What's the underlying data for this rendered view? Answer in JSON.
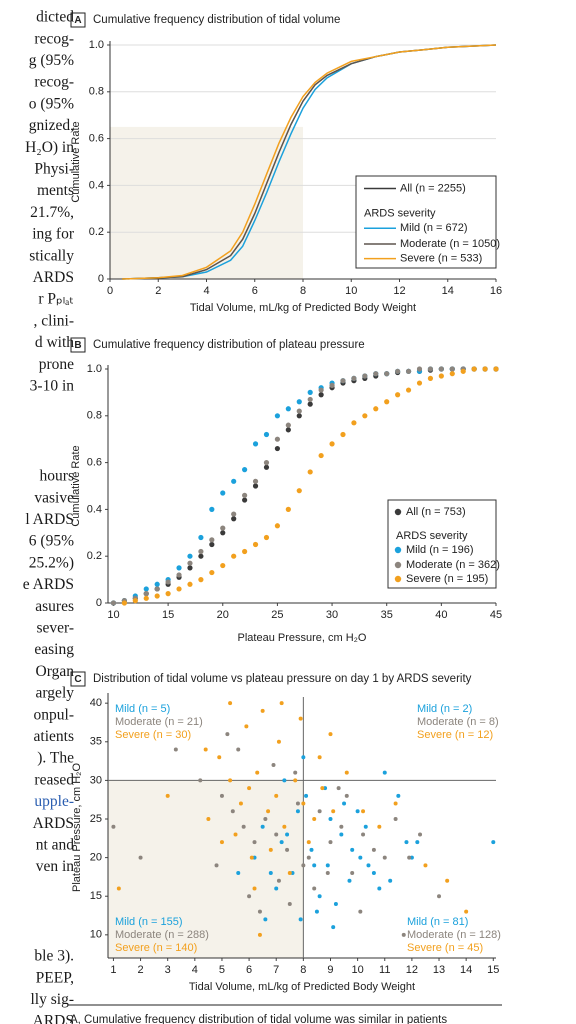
{
  "body_text": [
    [
      "dicted",
      "recog-",
      "g (95%",
      "recog-",
      "o (95%",
      "gnized,",
      "H₂O) in",
      "Physi-",
      "ments",
      "21.7%,",
      "ing for",
      "stically",
      "ARDS",
      "r Pₚₗₐₜ",
      ", clini-",
      "d with",
      "prone",
      "3-10 in"
    ],
    [
      "hours",
      "vasive",
      "l ARDS",
      "6 (95%",
      "25.2%)",
      "e ARDS",
      "asures",
      "sever-",
      "easing",
      "Organ",
      "argely",
      "onpul-",
      "atients",
      "). The",
      "reased",
      "upple-",
      "ARDS",
      "nt and",
      "ven in"
    ],
    [
      "ble 3).",
      "PEEP,",
      "lly sig-",
      "ARDS"
    ]
  ],
  "caption": "A, Cumulative frequency distribution of tidal volume was similar in patients",
  "chart_data": [
    {
      "panel": "A",
      "type": "line",
      "title": "Cumulative frequency distribution of tidal volume",
      "x_label": "Tidal Volume, mL/kg of Predicted Body Weight",
      "y_label": "Cumulative Rate",
      "xlim": [
        0,
        16
      ],
      "ylim": [
        0,
        1
      ],
      "xticks": [
        0,
        2,
        4,
        6,
        8,
        10,
        12,
        14,
        16
      ],
      "yticks": [
        0,
        0.2,
        0.4,
        0.6,
        0.8,
        {
          "value": 1,
          "label": "1.0"
        }
      ],
      "grid": true,
      "highlight": {
        "x": [
          0,
          8
        ],
        "y": [
          0,
          0.65
        ]
      },
      "legend_title": "ARDS severity",
      "x": [
        0.5,
        2,
        3,
        4,
        5,
        5.5,
        6,
        6.5,
        7,
        7.5,
        8,
        8.5,
        9,
        10,
        11,
        12,
        13,
        14,
        16
      ],
      "series": [
        {
          "name": "All (n = 2255)",
          "color": "#3a3a3a",
          "values": [
            0,
            0.005,
            0.01,
            0.04,
            0.1,
            0.17,
            0.28,
            0.41,
            0.54,
            0.66,
            0.76,
            0.83,
            0.87,
            0.92,
            0.95,
            0.97,
            0.98,
            0.99,
            1
          ]
        },
        {
          "name": "Mild (n = 672)",
          "color": "#1ba1dc",
          "values": [
            0,
            0.005,
            0.01,
            0.03,
            0.08,
            0.14,
            0.25,
            0.37,
            0.5,
            0.62,
            0.73,
            0.81,
            0.86,
            0.92,
            0.95,
            0.97,
            0.98,
            0.99,
            1
          ]
        },
        {
          "name": "Moderate (n = 1050)",
          "color": "#5e554e",
          "values": [
            0,
            0.005,
            0.01,
            0.04,
            0.1,
            0.17,
            0.28,
            0.41,
            0.54,
            0.66,
            0.76,
            0.83,
            0.87,
            0.92,
            0.95,
            0.97,
            0.98,
            0.99,
            1
          ]
        },
        {
          "name": "Severe (n = 533)",
          "color": "#f2a01e",
          "values": [
            0,
            0.005,
            0.015,
            0.05,
            0.12,
            0.2,
            0.32,
            0.45,
            0.58,
            0.69,
            0.78,
            0.84,
            0.88,
            0.93,
            0.95,
            0.97,
            0.98,
            0.99,
            1
          ]
        }
      ]
    },
    {
      "panel": "B",
      "type": "scatter",
      "title": "Cumulative frequency distribution of plateau pressure",
      "x_label": "Plateau Pressure, cm H₂O",
      "y_label": "Cumulative Rate",
      "xlim": [
        9.5,
        45
      ],
      "ylim": [
        0,
        1
      ],
      "xticks": [
        10,
        15,
        20,
        25,
        30,
        35,
        40,
        45
      ],
      "yticks": [
        0,
        0.2,
        0.4,
        0.6,
        0.8,
        {
          "value": 1,
          "label": "1.0"
        }
      ],
      "legend_title": "ARDS severity",
      "x": [
        10,
        11,
        12,
        13,
        14,
        15,
        16,
        17,
        18,
        19,
        20,
        21,
        22,
        23,
        24,
        25,
        26,
        27,
        28,
        29,
        30,
        31,
        32,
        33,
        34,
        35,
        36,
        37,
        38,
        39,
        40,
        41,
        42,
        43,
        44,
        45
      ],
      "series": [
        {
          "name": "All (n = 753)",
          "color": "#3a3a3a",
          "values": [
            0,
            0.01,
            0.02,
            0.04,
            0.06,
            0.08,
            0.11,
            0.15,
            0.2,
            0.25,
            0.3,
            0.36,
            0.44,
            0.5,
            0.58,
            0.66,
            0.74,
            0.8,
            0.85,
            0.89,
            0.92,
            0.94,
            0.95,
            0.96,
            0.97,
            0.98,
            0.985,
            0.99,
            0.99,
            0.995,
            1,
            1,
            1,
            1,
            1,
            1
          ]
        },
        {
          "name": "Mild (n = 196)",
          "color": "#1ba1dc",
          "values": [
            0,
            0.01,
            0.03,
            0.06,
            0.08,
            0.1,
            0.15,
            0.2,
            0.28,
            0.4,
            0.47,
            0.52,
            0.57,
            0.68,
            0.72,
            0.8,
            0.83,
            0.86,
            0.9,
            0.92,
            0.94,
            0.95,
            0.96,
            0.97,
            0.98,
            0.98,
            0.99,
            0.99,
            0.99,
            1,
            1,
            1,
            1,
            1,
            1,
            1
          ]
        },
        {
          "name": "Moderate (n = 362)",
          "color": "#8c857e",
          "values": [
            0,
            0.01,
            0.02,
            0.04,
            0.06,
            0.09,
            0.12,
            0.17,
            0.22,
            0.27,
            0.32,
            0.38,
            0.46,
            0.52,
            0.6,
            0.7,
            0.76,
            0.82,
            0.87,
            0.91,
            0.93,
            0.95,
            0.96,
            0.97,
            0.98,
            0.98,
            0.99,
            0.99,
            1,
            1,
            1,
            1,
            1,
            1,
            1,
            1
          ]
        },
        {
          "name": "Severe (n = 195)",
          "color": "#f2a01e",
          "values": [
            null,
            0,
            0.01,
            0.02,
            0.03,
            0.04,
            0.06,
            0.08,
            0.1,
            0.13,
            0.16,
            0.2,
            0.22,
            0.25,
            0.28,
            0.33,
            0.4,
            0.48,
            0.56,
            0.63,
            0.68,
            0.72,
            0.77,
            0.8,
            0.83,
            0.86,
            0.89,
            0.91,
            0.94,
            0.96,
            0.97,
            0.98,
            0.99,
            1,
            1,
            1
          ]
        }
      ]
    },
    {
      "panel": "C",
      "type": "scatter",
      "title": "Distribution of tidal volume vs plateau pressure on day 1 by ARDS severity",
      "x_label": "Tidal Volume, mL/kg of Predicted Body Weight",
      "y_label": "Plateau Pressure, cm H₂O",
      "xlim": [
        0.8,
        15.1
      ],
      "ylim": [
        7,
        40.8
      ],
      "xticks": [
        1,
        2,
        3,
        4,
        5,
        6,
        7,
        8,
        9,
        10,
        11,
        12,
        13,
        14,
        15
      ],
      "yticks": [
        10,
        15,
        20,
        25,
        30,
        35,
        40
      ],
      "highlight": {
        "x": [
          0.8,
          8
        ],
        "y": [
          7,
          30
        ]
      },
      "reference_lines": {
        "x": 8,
        "y": 30
      },
      "annotations": [
        {
          "corner": "top-left",
          "texts": [
            "Mild (n = 5)",
            "Moderate (n = 21)",
            "Severe (n = 30)"
          ]
        },
        {
          "corner": "top-right",
          "texts": [
            "Mild (n = 2)",
            "Moderate (n = 8)",
            "Severe (n = 12)"
          ]
        },
        {
          "corner": "bottom-left",
          "texts": [
            "Mild (n = 155)",
            "Moderate (n = 288)",
            "Severe (n = 140)"
          ]
        },
        {
          "corner": "bottom-right",
          "texts": [
            "Mild (n = 81)",
            "Moderate (n = 128)",
            "Severe (n = 45)"
          ]
        }
      ],
      "series": [
        {
          "color": "#1ba1dc",
          "x": [
            6.5,
            7.2,
            7.8,
            8.3,
            8.9,
            9.4,
            10.1,
            10.6,
            11.2,
            11.8,
            12.0,
            15.0,
            8.1,
            9.0,
            9.7,
            10.3,
            7.0,
            7.6,
            8.6,
            9.2,
            6.2,
            6.8,
            7.4,
            8.4,
            9.8,
            10.8,
            11.5,
            8.0,
            7.3,
            8.8,
            9.5,
            6.6,
            10.0,
            12.2,
            11.0,
            5.6,
            7.9,
            8.5,
            9.1,
            10.4
          ],
          "values": [
            24,
            22,
            26,
            21,
            19,
            23,
            20,
            18,
            17,
            22,
            20,
            22,
            28,
            25,
            17,
            24,
            16,
            18,
            15,
            14,
            20,
            18,
            23,
            19,
            21,
            16,
            28,
            33,
            30,
            29,
            27,
            12,
            26,
            22,
            31,
            18,
            12,
            13,
            11,
            19
          ]
        },
        {
          "color": "#8c857e",
          "x": [
            1.0,
            2.0,
            3.3,
            4.2,
            5.0,
            5.4,
            5.8,
            6.2,
            6.6,
            7.0,
            7.4,
            7.8,
            8.2,
            8.6,
            9.0,
            9.4,
            9.8,
            10.2,
            10.6,
            11.0,
            11.4,
            11.9,
            12.3,
            6.0,
            7.1,
            8.0,
            8.9,
            5.6,
            6.9,
            7.7,
            9.3,
            4.8,
            6.4,
            7.5,
            8.4,
            10.1,
            13.0,
            11.7,
            5.2,
            9.6
          ],
          "values": [
            24,
            20,
            34,
            30,
            28,
            26,
            24,
            22,
            25,
            23,
            21,
            27,
            20,
            26,
            22,
            24,
            18,
            23,
            21,
            20,
            25,
            20,
            23,
            15,
            17,
            19,
            18,
            34,
            32,
            31,
            29,
            19,
            13,
            14,
            16,
            13,
            15,
            10,
            36,
            28
          ]
        },
        {
          "color": "#f2a01e",
          "x": [
            1.2,
            3.0,
            4.5,
            4.9,
            5.3,
            5.7,
            6.0,
            6.3,
            6.7,
            7.0,
            7.3,
            7.7,
            8.0,
            8.4,
            8.7,
            9.1,
            9.6,
            10.2,
            10.8,
            12.5,
            13.3,
            14.0,
            5.0,
            5.5,
            6.1,
            6.8,
            7.5,
            8.2,
            5.9,
            6.5,
            7.1,
            7.9,
            6.4,
            4.4,
            9.0,
            11.4,
            6.2,
            5.3,
            8.6,
            7.2
          ],
          "values": [
            16,
            28,
            25,
            33,
            30,
            27,
            29,
            31,
            26,
            28,
            24,
            30,
            27,
            25,
            29,
            26,
            31,
            26,
            24,
            19,
            17,
            13,
            22,
            23,
            20,
            21,
            18,
            22,
            37,
            39,
            35,
            38,
            10,
            34,
            36,
            27,
            16,
            40,
            33,
            40
          ]
        }
      ]
    }
  ]
}
